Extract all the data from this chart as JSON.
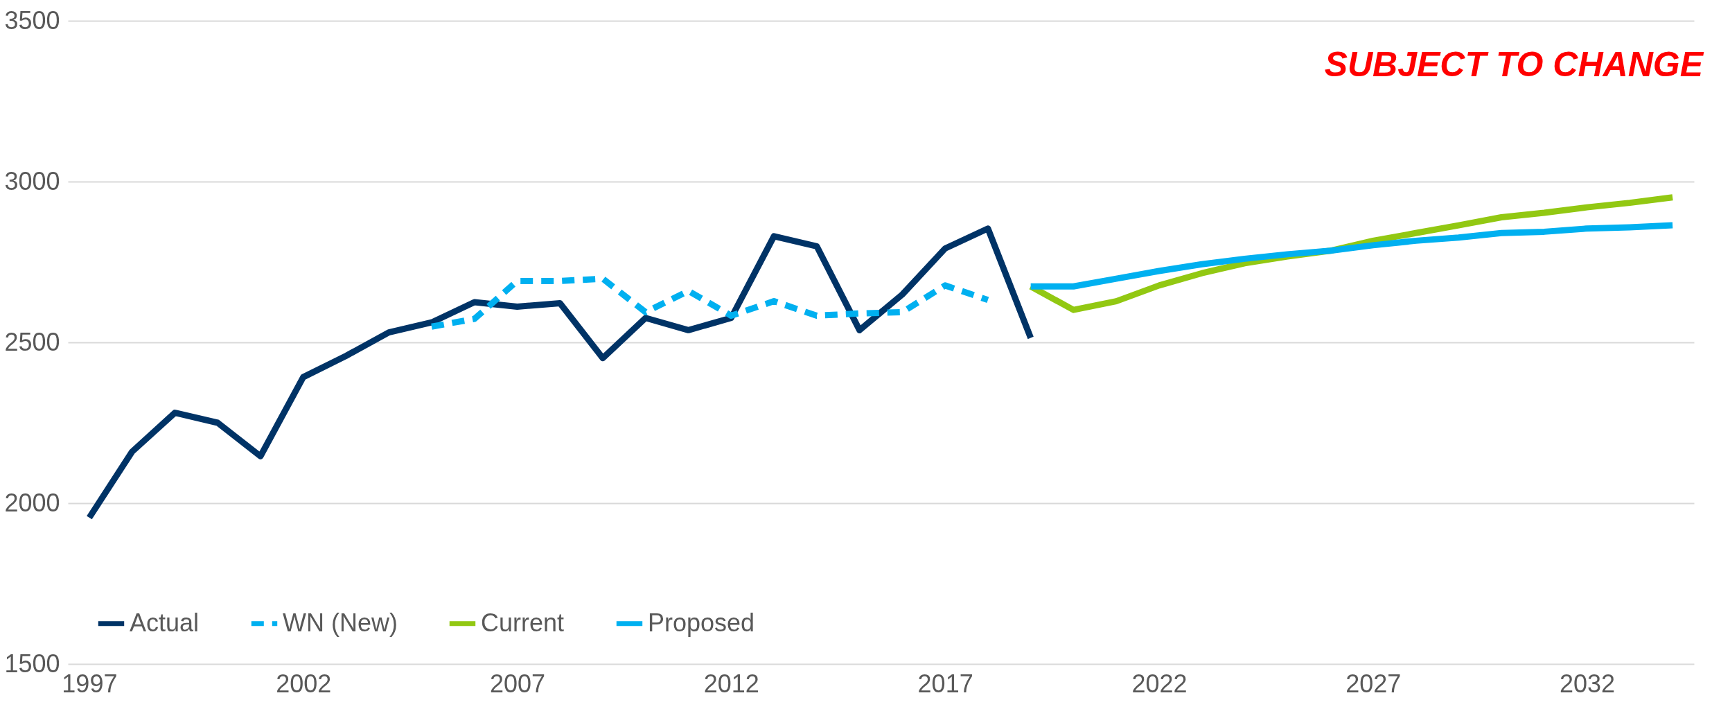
{
  "chart_data": {
    "type": "line",
    "xlim": [
      1996.5,
      2034.5
    ],
    "xticks": [
      1997,
      2002,
      2007,
      2012,
      2017,
      2022,
      2027,
      2032
    ],
    "ylim": [
      1500,
      3500
    ],
    "yticks": [
      1500,
      2000,
      2500,
      3000,
      3500
    ],
    "grid": "y",
    "legend": "bottom",
    "marker": "none",
    "annotations": [
      "SUBJECT TO CHANGE"
    ],
    "series": [
      {
        "name": "Actual",
        "color": "#003366",
        "line_style": "solid",
        "x": [
          1997,
          1998,
          1999,
          2000,
          2001,
          2002,
          2003,
          2004,
          2005,
          2006,
          2007,
          2008,
          2009,
          2010,
          2011,
          2012,
          2013,
          2014,
          2015,
          2016,
          2017,
          2018,
          2019
        ],
        "values": [
          1955,
          2160,
          2281,
          2250,
          2146,
          2392,
          2458,
          2531,
          2562,
          2625,
          2611,
          2622,
          2451,
          2576,
          2538,
          2576,
          2830,
          2799,
          2538,
          2649,
          2792,
          2854,
          2514
        ]
      },
      {
        "name": "WN (New)",
        "color": "#00b0f0",
        "line_style": "dashed",
        "x": [
          2005,
          2006,
          2007,
          2008,
          2009,
          2010,
          2011,
          2012,
          2013,
          2014,
          2015,
          2016,
          2017,
          2018
        ],
        "values": [
          2549,
          2573,
          2691,
          2691,
          2698,
          2594,
          2660,
          2583,
          2628,
          2583,
          2590,
          2594,
          2677,
          2632
        ]
      },
      {
        "name": "Current",
        "color": "#92c812",
        "line_style": "solid",
        "x": [
          2019,
          2020,
          2021,
          2022,
          2023,
          2024,
          2025,
          2026,
          2027,
          2028,
          2029,
          2030,
          2031,
          2032,
          2033,
          2034
        ],
        "values": [
          2674,
          2601,
          2628,
          2677,
          2715,
          2746,
          2767,
          2785,
          2816,
          2840,
          2864,
          2889,
          2903,
          2920,
          2934,
          2951
        ]
      },
      {
        "name": "Proposed",
        "color": "#00b0f0",
        "line_style": "solid",
        "x": [
          2019,
          2020,
          2021,
          2022,
          2023,
          2024,
          2025,
          2026,
          2027,
          2028,
          2029,
          2030,
          2031,
          2032,
          2033,
          2034
        ],
        "values": [
          2674,
          2674,
          2698,
          2722,
          2743,
          2760,
          2774,
          2785,
          2802,
          2816,
          2826,
          2840,
          2844,
          2854,
          2858,
          2864
        ]
      }
    ]
  }
}
